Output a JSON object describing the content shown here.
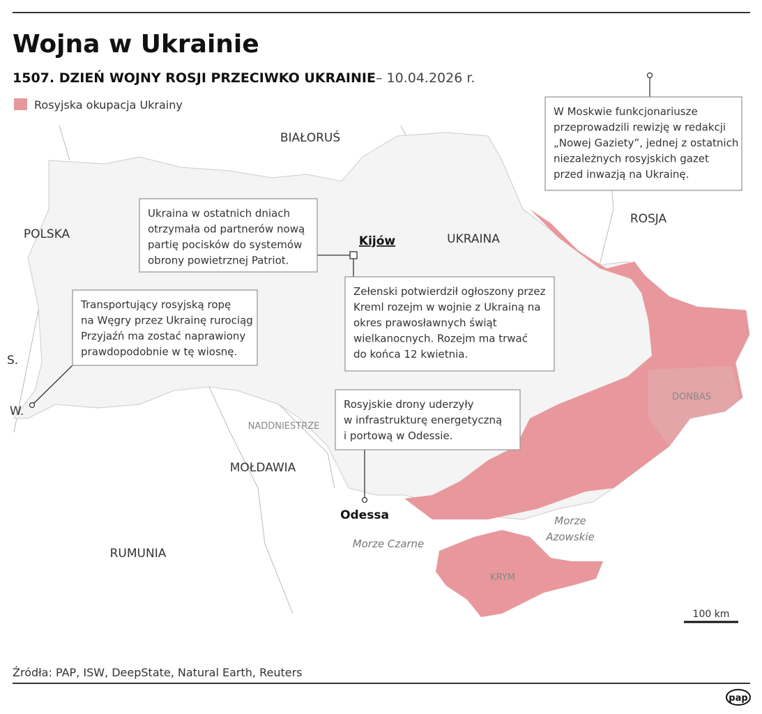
{
  "header": {
    "title": "Wojna w Ukrainie",
    "subtitle": "1507. DZIEŃ WOJNY ROSJI PRZECIWKO UKRAINIE",
    "date": "– 10.04.2026 r."
  },
  "legend": {
    "label": "Rosyjska okupacja Ukrainy"
  },
  "map": {
    "countries": [
      "BIAŁORUŚ",
      "ROSJA",
      "POLSKA",
      "UKRAINA",
      "MOŁDAWIA",
      "RUMUNIA",
      "S.",
      "W."
    ],
    "regions": [
      "NADDNIESTRZE",
      "DONBAS",
      "KRYM"
    ],
    "seas": [
      "Morze Czarne",
      "Morze",
      "Azowskie"
    ],
    "cities": [
      "Kijów",
      "Odessa"
    ],
    "scale": "100 km"
  },
  "callouts": [
    {
      "lines": [
        "W Moskwie funkcjonariusze",
        "przeprowadzili rewizję w redakcji",
        "„Nowej Gaziety”, jednej z ostatnich",
        "niezależnych rosyjskich gazet",
        "przed inwazją na Ukrainę."
      ]
    },
    {
      "lines": [
        "Ukraina w ostatnich dniach",
        "otrzymała od partnerów nową",
        "partię pocisków do systemów",
        "obrony powietrznej Patriot."
      ]
    },
    {
      "lines": [
        "Transportujący rosyjską ropę",
        "na Węgry przez Ukrainę rurociąg",
        "Przyjaźń ma zostać naprawiony",
        "prawdopodobnie w tę wiosnę."
      ]
    },
    {
      "lines": [
        "Zełenski potwierdził ogłoszony przez",
        "Kreml rozejm w wojnie z Ukrainą na",
        "okres prawosławnych świąt",
        "wielkanocnych. Rozejm ma trwać",
        "do końca 12 kwietnia."
      ]
    },
    {
      "lines": [
        "Rosyjskie drony uderzyły",
        "w infrastrukturę energetyczną",
        "i portową w Odessie."
      ]
    }
  ],
  "footer": {
    "sources": "Źródła: PAP, ISW, DeepState, Natural Earth, Reuters",
    "logo": "pap"
  }
}
